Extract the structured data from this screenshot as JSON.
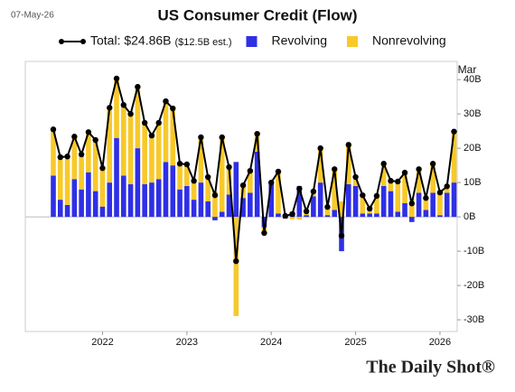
{
  "chart_data": {
    "type": "bar",
    "stacked": true,
    "date": "07-May-26",
    "title": "US Consumer Credit (Flow)",
    "legend_note": "($12.5B est.)",
    "last_period": "Mar",
    "source": "The Daily Shot®",
    "categories": [
      null,
      null,
      null,
      null,
      null,
      null,
      null,
      "2022",
      null,
      null,
      null,
      null,
      null,
      null,
      null,
      null,
      null,
      null,
      null,
      "2023",
      null,
      null,
      null,
      null,
      null,
      null,
      null,
      null,
      null,
      null,
      null,
      "2024",
      null,
      null,
      null,
      null,
      null,
      null,
      null,
      null,
      null,
      null,
      null,
      "2025",
      null,
      null,
      null,
      null,
      null,
      null,
      null,
      null,
      null,
      null,
      null,
      "2026",
      null,
      null
    ],
    "series": [
      {
        "name": "Total: $24.86B",
        "type": "line",
        "color": "#000000",
        "values": [
          25.5,
          17.4,
          17.6,
          23.4,
          18.2,
          24.7,
          22.4,
          14.2,
          31.8,
          40.3,
          32.6,
          30,
          37.9,
          27.4,
          23.7,
          27.4,
          33.7,
          31.6,
          15.5,
          15.3,
          10.5,
          23.2,
          11.6,
          6.3,
          23.2,
          14.5,
          -12.9,
          9.2,
          13.4,
          24.2,
          -4.7,
          10,
          13.2,
          0.3,
          0.8,
          8.2,
          1.6,
          7.4,
          20,
          2.9,
          13.9,
          -5.5,
          21,
          11.6,
          6.3,
          2.4,
          6.1,
          15.5,
          10.5,
          10.3,
          12.9,
          3.9,
          13.9,
          5.5,
          15.5,
          7.1,
          8.9,
          24.86
        ]
      },
      {
        "name": "Revolving",
        "type": "bar",
        "color": "#2f2fe6",
        "values": [
          12,
          5,
          3.5,
          11,
          8,
          13,
          7.5,
          3,
          10,
          23,
          12,
          9.5,
          20,
          9.5,
          10,
          11,
          16,
          15,
          8,
          9,
          5,
          10,
          4.5,
          -1,
          1.5,
          6.5,
          16,
          5.5,
          7,
          19,
          -3,
          9.5,
          1,
          -0.5,
          1.5,
          9,
          0.5,
          6,
          10,
          0.5,
          2,
          -10,
          9.5,
          9,
          1,
          1,
          1,
          9,
          7.5,
          1.5,
          4,
          -1.5,
          7,
          2,
          7,
          0.5,
          7,
          10
        ]
      },
      {
        "name": "Nonrevolving",
        "type": "bar",
        "color": "#f7c92a",
        "values": [
          13.5,
          12.4,
          14.1,
          12.4,
          10.2,
          11.7,
          14.9,
          11.2,
          21.8,
          17.3,
          20.6,
          20.5,
          17.9,
          17.9,
          13.7,
          16.4,
          17.7,
          16.6,
          7.5,
          6.3,
          5.5,
          13.2,
          7.1,
          7.3,
          21.7,
          8,
          -28.9,
          3.7,
          6.4,
          5.2,
          -1.7,
          0.5,
          12.2,
          0.8,
          -0.7,
          -0.8,
          1.1,
          1.4,
          10,
          2.4,
          11.9,
          4.5,
          11.5,
          2.6,
          5.3,
          1.4,
          5.1,
          6.5,
          3,
          8.8,
          8.9,
          5.4,
          6.9,
          3.5,
          8.5,
          6.6,
          1.9,
          14.86
        ]
      }
    ],
    "ylim": [
      -33.4,
      45.3
    ],
    "yticks": [
      {
        "value": -30,
        "label": "-30B"
      },
      {
        "value": -20,
        "label": "-20B"
      },
      {
        "value": -10,
        "label": "-10B"
      },
      {
        "value": 0,
        "label": "0B"
      },
      {
        "value": 10,
        "label": "10B"
      },
      {
        "value": 20,
        "label": "20B"
      },
      {
        "value": 30,
        "label": "30B"
      },
      {
        "value": 40,
        "label": "40B"
      }
    ],
    "grid": false
  }
}
